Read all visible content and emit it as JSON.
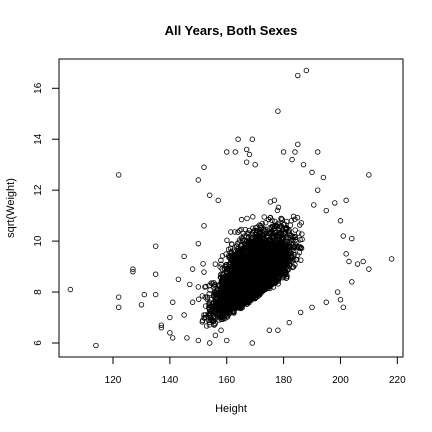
{
  "chart_data": {
    "type": "scatter",
    "title": "All Years, Both Sexes",
    "xlabel": "Height",
    "ylabel": "sqrt(Weight)",
    "xlim": [
      101,
      222
    ],
    "ylim": [
      5.45,
      17.15
    ],
    "x_ticks": [
      120,
      140,
      160,
      180,
      200,
      220
    ],
    "y_ticks": [
      6,
      8,
      10,
      12,
      14,
      16
    ],
    "grid": false,
    "points": [
      [
        105,
        8.1
      ],
      [
        114,
        5.9
      ],
      [
        122,
        12.6
      ],
      [
        122,
        7.8
      ],
      [
        122,
        7.4
      ],
      [
        127,
        8.9
      ],
      [
        127,
        8.8
      ],
      [
        130,
        7.5
      ],
      [
        131,
        7.9
      ],
      [
        135,
        9.8
      ],
      [
        135,
        7.9
      ],
      [
        135,
        8.7
      ],
      [
        137,
        6.6
      ],
      [
        137,
        6.7
      ],
      [
        140,
        7.0
      ],
      [
        140,
        6.4
      ],
      [
        141,
        7.6
      ],
      [
        141,
        6.2
      ],
      [
        143,
        8.5
      ],
      [
        145,
        9.4
      ],
      [
        145,
        7.1
      ],
      [
        146,
        6.2
      ],
      [
        147,
        8.3
      ],
      [
        148,
        8.9
      ],
      [
        148,
        7.6
      ],
      [
        150,
        12.4
      ],
      [
        150,
        9.9
      ],
      [
        150,
        8.2
      ],
      [
        150,
        6.1
      ],
      [
        152,
        12.9
      ],
      [
        152,
        10.6
      ],
      [
        152,
        7.1
      ],
      [
        154,
        11.8
      ],
      [
        154,
        6.0
      ],
      [
        156,
        6.3
      ],
      [
        157,
        11.6
      ],
      [
        158,
        6.5
      ],
      [
        160,
        13.5
      ],
      [
        160,
        6.1
      ],
      [
        163,
        13.5
      ],
      [
        164,
        14.0
      ],
      [
        167,
        13.6
      ],
      [
        167,
        13.1
      ],
      [
        168,
        13.4
      ],
      [
        169,
        14.0
      ],
      [
        169,
        6.0
      ],
      [
        170,
        13.0
      ],
      [
        175,
        6.5
      ],
      [
        178,
        15.1
      ],
      [
        178,
        6.5
      ],
      [
        180,
        13.5
      ],
      [
        182,
        6.8
      ],
      [
        183,
        13.2
      ],
      [
        184,
        13.5
      ],
      [
        185,
        16.5
      ],
      [
        185,
        13.8
      ],
      [
        186,
        7.2
      ],
      [
        187,
        13.0
      ],
      [
        188,
        16.7
      ],
      [
        190,
        12.7
      ],
      [
        190,
        7.4
      ],
      [
        192,
        13.5
      ],
      [
        192,
        12.0
      ],
      [
        194,
        12.5
      ],
      [
        195,
        11.2
      ],
      [
        195,
        7.6
      ],
      [
        198,
        11.5
      ],
      [
        199,
        8.0
      ],
      [
        200,
        10.8
      ],
      [
        200,
        7.7
      ],
      [
        201,
        10.2
      ],
      [
        201,
        7.4
      ],
      [
        202,
        11.6
      ],
      [
        202,
        9.5
      ],
      [
        203,
        9.2
      ],
      [
        204,
        10.1
      ],
      [
        204,
        8.4
      ],
      [
        206,
        9.1
      ],
      [
        208,
        9.2
      ],
      [
        210,
        12.6
      ],
      [
        210,
        8.9
      ],
      [
        218,
        9.3
      ]
    ]
  }
}
